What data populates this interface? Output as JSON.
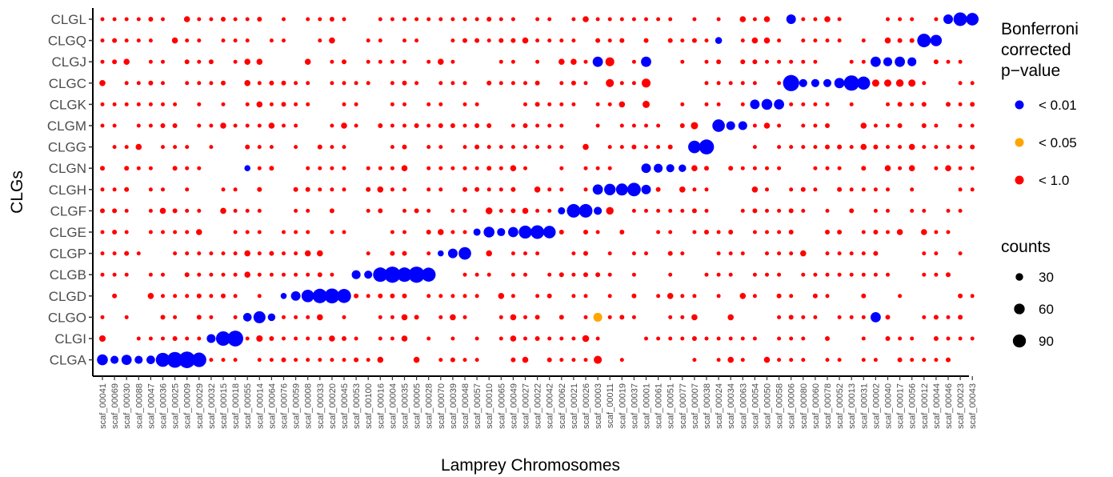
{
  "chart_data": {
    "type": "scatter",
    "xlabel": "Lamprey Chromosomes",
    "ylabel": "CLGs",
    "x_categories": [
      "scaf_00041",
      "scaf_00069",
      "scaf_00030",
      "scaf_00088",
      "scaf_00047",
      "scaf_00036",
      "scaf_00025",
      "scaf_00009",
      "scaf_00029",
      "scaf_00032",
      "scaf_00015",
      "scaf_00018",
      "scaf_00055",
      "scaf_00014",
      "scaf_00064",
      "scaf_00076",
      "scaf_00059",
      "scaf_00008",
      "scaf_00033",
      "scaf_00020",
      "scaf_00045",
      "scaf_00053",
      "scaf_00100",
      "scaf_00016",
      "scaf_00004",
      "scaf_00035",
      "scaf_00005",
      "scaf_00028",
      "scaf_00070",
      "scaf_00039",
      "scaf_00048",
      "scaf_00057",
      "scaf_00010",
      "scaf_00065",
      "scaf_00049",
      "scaf_00027",
      "scaf_00022",
      "scaf_00042",
      "scaf_00062",
      "scaf_00021",
      "scaf_00026",
      "scaf_00003",
      "scaf_00011",
      "scaf_00019",
      "scaf_00037",
      "scaf_00001",
      "scaf_00061",
      "scaf_00051",
      "scaf_00077",
      "scaf_00007",
      "scaf_00038",
      "scaf_00024",
      "scaf_00034",
      "scaf_00063",
      "scaf_00054",
      "scaf_00050",
      "scaf_00058",
      "scaf_00006",
      "scaf_00080",
      "scaf_00060",
      "scaf_00078",
      "scaf_00052",
      "scaf_00013",
      "scaf_00031",
      "scaf_00002",
      "scaf_00040",
      "scaf_00017",
      "scaf_00056",
      "scaf_00012",
      "scaf_00044",
      "scaf_00046",
      "scaf_00023",
      "scaf_00043"
    ],
    "y_categories": [
      "CLGL",
      "CLGQ",
      "CLGJ",
      "CLGC",
      "CLGK",
      "CLGM",
      "CLGG",
      "CLGN",
      "CLGH",
      "CLGF",
      "CLGE",
      "CLGP",
      "CLGB",
      "CLGD",
      "CLGO",
      "CLGI",
      "CLGA"
    ],
    "legend_color": {
      "title": "Bonferroni\ncorrected\np−value",
      "entries": [
        {
          "label": "< 0.01",
          "color": "#0000ff"
        },
        {
          "label": "< 0.05",
          "color": "#ffa500"
        },
        {
          "label": "< 1.0",
          "color": "#ff0000"
        }
      ]
    },
    "legend_size": {
      "title": "counts",
      "entries": [
        {
          "label": "30",
          "value": 30
        },
        {
          "label": "60",
          "value": 60
        },
        {
          "label": "90",
          "value": 90
        }
      ]
    },
    "points": [
      [
        "scaf_00009",
        "CLGA",
        105,
        "#0000ff"
      ],
      [
        "scaf_00025",
        "CLGA",
        95,
        "#0000ff"
      ],
      [
        "scaf_00036",
        "CLGA",
        75,
        "#0000ff"
      ],
      [
        "scaf_00029",
        "CLGA",
        80,
        "#0000ff"
      ],
      [
        "scaf_00041",
        "CLGA",
        45,
        "#0000ff"
      ],
      [
        "scaf_00030",
        "CLGA",
        40,
        "#0000ff"
      ],
      [
        "scaf_00069",
        "CLGA",
        25,
        "#0000ff"
      ],
      [
        "scaf_00088",
        "CLGA",
        25,
        "#0000ff"
      ],
      [
        "scaf_00047",
        "CLGA",
        28,
        "#0000ff"
      ],
      [
        "scaf_00018",
        "CLGI",
        95,
        "#0000ff"
      ],
      [
        "scaf_00015",
        "CLGI",
        80,
        "#0000ff"
      ],
      [
        "scaf_00032",
        "CLGI",
        30,
        "#0000ff"
      ],
      [
        "scaf_00014",
        "CLGO",
        55,
        "#0000ff"
      ],
      [
        "scaf_00055",
        "CLGO",
        28,
        "#0000ff"
      ],
      [
        "scaf_00064",
        "CLGO",
        22,
        "#0000ff"
      ],
      [
        "scaf_00033",
        "CLGD",
        80,
        "#0000ff"
      ],
      [
        "scaf_00020",
        "CLGD",
        85,
        "#0000ff"
      ],
      [
        "scaf_00045",
        "CLGD",
        75,
        "#0000ff"
      ],
      [
        "scaf_00008",
        "CLGD",
        60,
        "#0000ff"
      ],
      [
        "scaf_00059",
        "CLGD",
        35,
        "#0000ff"
      ],
      [
        "scaf_00076",
        "CLGD",
        14,
        "#0000ff"
      ],
      [
        "scaf_00004",
        "CLGB",
        100,
        "#0000ff"
      ],
      [
        "scaf_00005",
        "CLGB",
        100,
        "#0000ff"
      ],
      [
        "scaf_00016",
        "CLGB",
        80,
        "#0000ff"
      ],
      [
        "scaf_00035",
        "CLGB",
        80,
        "#0000ff"
      ],
      [
        "scaf_00028",
        "CLGB",
        75,
        "#0000ff"
      ],
      [
        "scaf_00053",
        "CLGB",
        30,
        "#0000ff"
      ],
      [
        "scaf_00100",
        "CLGB",
        25,
        "#0000ff"
      ],
      [
        "scaf_00048",
        "CLGP",
        60,
        "#0000ff"
      ],
      [
        "scaf_00039",
        "CLGP",
        35,
        "#0000ff"
      ],
      [
        "scaf_00070",
        "CLGP",
        14,
        "#0000ff"
      ],
      [
        "scaf_00027",
        "CLGE",
        65,
        "#0000ff"
      ],
      [
        "scaf_00022",
        "CLGE",
        70,
        "#0000ff"
      ],
      [
        "scaf_00042",
        "CLGE",
        60,
        "#0000ff"
      ],
      [
        "scaf_00010",
        "CLGE",
        45,
        "#0000ff"
      ],
      [
        "scaf_00049",
        "CLGE",
        40,
        "#0000ff"
      ],
      [
        "scaf_00065",
        "CLGE",
        25,
        "#0000ff"
      ],
      [
        "scaf_00057",
        "CLGE",
        20,
        "#0000ff"
      ],
      [
        "scaf_00021",
        "CLGF",
        70,
        "#0000ff"
      ],
      [
        "scaf_00026",
        "CLGF",
        70,
        "#0000ff"
      ],
      [
        "scaf_00062",
        "CLGF",
        20,
        "#0000ff"
      ],
      [
        "scaf_00003",
        "CLGF",
        25,
        "#0000ff"
      ],
      [
        "scaf_00011",
        "CLGF",
        22,
        "#ff0000"
      ],
      [
        "scaf_00037",
        "CLGH",
        70,
        "#0000ff"
      ],
      [
        "scaf_00019",
        "CLGH",
        55,
        "#0000ff"
      ],
      [
        "scaf_00011",
        "CLGH",
        50,
        "#0000ff"
      ],
      [
        "scaf_00003",
        "CLGH",
        40,
        "#0000ff"
      ],
      [
        "scaf_00001",
        "CLGH",
        35,
        "#0000ff"
      ],
      [
        "scaf_00001",
        "CLGN",
        35,
        "#0000ff"
      ],
      [
        "scaf_00061",
        "CLGN",
        30,
        "#0000ff"
      ],
      [
        "scaf_00051",
        "CLGN",
        25,
        "#0000ff"
      ],
      [
        "scaf_00077",
        "CLGN",
        22,
        "#0000ff"
      ],
      [
        "scaf_00055",
        "CLGN",
        14,
        "#0000ff"
      ],
      [
        "scaf_00038",
        "CLGG",
        85,
        "#0000ff"
      ],
      [
        "scaf_00007",
        "CLGG",
        60,
        "#0000ff"
      ],
      [
        "scaf_00024",
        "CLGM",
        60,
        "#0000ff"
      ],
      [
        "scaf_00034",
        "CLGM",
        30,
        "#0000ff"
      ],
      [
        "scaf_00063",
        "CLGM",
        30,
        "#0000ff"
      ],
      [
        "scaf_00007",
        "CLGM",
        20,
        "#ff0000"
      ],
      [
        "scaf_00050",
        "CLGK",
        45,
        "#0000ff"
      ],
      [
        "scaf_00058",
        "CLGK",
        40,
        "#0000ff"
      ],
      [
        "scaf_00054",
        "CLGK",
        35,
        "#0000ff"
      ],
      [
        "scaf_00006",
        "CLGC",
        100,
        "#0000ff"
      ],
      [
        "scaf_00013",
        "CLGC",
        90,
        "#0000ff"
      ],
      [
        "scaf_00031",
        "CLGC",
        65,
        "#0000ff"
      ],
      [
        "scaf_00052",
        "CLGC",
        40,
        "#0000ff"
      ],
      [
        "scaf_00080",
        "CLGC",
        25,
        "#0000ff"
      ],
      [
        "scaf_00060",
        "CLGC",
        25,
        "#0000ff"
      ],
      [
        "scaf_00078",
        "CLGC",
        25,
        "#0000ff"
      ],
      [
        "scaf_00001",
        "CLGC",
        30,
        "#ff0000"
      ],
      [
        "scaf_00011",
        "CLGC",
        25,
        "#ff0000"
      ],
      [
        "scaf_00002",
        "CLGC",
        20,
        "#ff0000"
      ],
      [
        "scaf_00040",
        "CLGC",
        20,
        "#ff0000"
      ],
      [
        "scaf_00017",
        "CLGC",
        22,
        "#ff0000"
      ],
      [
        "scaf_00056",
        "CLGC",
        20,
        "#ff0000"
      ],
      [
        "scaf_00002",
        "CLGJ",
        40,
        "#0000ff"
      ],
      [
        "scaf_00017",
        "CLGJ",
        40,
        "#0000ff"
      ],
      [
        "scaf_00040",
        "CLGJ",
        30,
        "#0000ff"
      ],
      [
        "scaf_00056",
        "CLGJ",
        30,
        "#0000ff"
      ],
      [
        "scaf_00003",
        "CLGJ",
        40,
        "#0000ff"
      ],
      [
        "scaf_00001",
        "CLGJ",
        40,
        "#0000ff"
      ],
      [
        "scaf_00011",
        "CLGJ",
        30,
        "#ff0000"
      ],
      [
        "scaf_00012",
        "CLGQ",
        70,
        "#0000ff"
      ],
      [
        "scaf_00044",
        "CLGQ",
        50,
        "#0000ff"
      ],
      [
        "scaf_00024",
        "CLGQ",
        18,
        "#0000ff"
      ],
      [
        "scaf_00023",
        "CLGL",
        70,
        "#0000ff"
      ],
      [
        "scaf_00043",
        "CLGL",
        60,
        "#0000ff"
      ],
      [
        "scaf_00046",
        "CLGL",
        35,
        "#0000ff"
      ],
      [
        "scaf_00006",
        "CLGL",
        35,
        "#0000ff"
      ],
      [
        "scaf_00003",
        "CLGO",
        30,
        "#ffa500"
      ],
      [
        "scaf_00002",
        "CLGO",
        40,
        "#0000ff"
      ],
      [
        "scaf_00003",
        "CLGA",
        25,
        "#ff0000"
      ],
      [
        "scaf_00010",
        "CLGF",
        18,
        "#ff0000"
      ],
      [
        "scaf_00001",
        "CLGK",
        20,
        "#ff0000"
      ],
      [
        "scaf_00041",
        "CLGI",
        16,
        "#ff0000"
      ],
      [
        "scaf_00026",
        "CLGI",
        18,
        "#ff0000"
      ],
      [
        "scaf_00014",
        "CLGI",
        16,
        "#ff0000"
      ]
    ]
  }
}
